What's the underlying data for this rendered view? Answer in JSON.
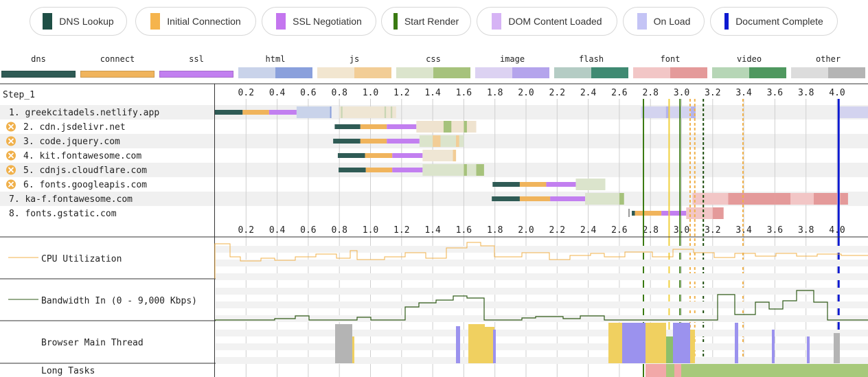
{
  "legend": [
    {
      "label": "DNS Lookup",
      "color": "#1f4f46"
    },
    {
      "label": "Initial Connection",
      "color": "#f5b44d"
    },
    {
      "label": "SSL Negotiation",
      "color": "#c476ef"
    },
    {
      "label": "Start Render",
      "color": "#3a7a12"
    },
    {
      "label": "DOM Content Loaded",
      "color": "#d6b3f5"
    },
    {
      "label": "On Load",
      "color": "#c4c4f5"
    },
    {
      "label": "Document Complete",
      "color": "#0d1ad1"
    }
  ],
  "types": [
    {
      "label": "dns",
      "light": "#2f5b55",
      "dark": "#2f5b55"
    },
    {
      "label": "connect",
      "light": "#f0b45c",
      "dark": "#f0b45c"
    },
    {
      "label": "ssl",
      "light": "#c27ff0",
      "dark": "#c27ff0"
    },
    {
      "label": "html",
      "light": "#c9d3ea",
      "dark": "#8aa0dc"
    },
    {
      "label": "js",
      "light": "#f2e6d0",
      "dark": "#f2cd96"
    },
    {
      "label": "css",
      "light": "#dbe4cc",
      "dark": "#a6c27c"
    },
    {
      "label": "image",
      "light": "#dcd2f2",
      "dark": "#b4a4ec"
    },
    {
      "label": "flash",
      "light": "#b4ccc4",
      "dark": "#3f8a72"
    },
    {
      "label": "font",
      "light": "#f2c6c6",
      "dark": "#e49a9a"
    },
    {
      "label": "video",
      "light": "#b6d6b6",
      "dark": "#4f985f"
    },
    {
      "label": "other",
      "light": "#dcdcdc",
      "dark": "#b4b4b4"
    }
  ],
  "step_label": "Step_1",
  "ticks": [
    "0.2",
    "0.4",
    "0.6",
    "0.8",
    "1.0",
    "1.2",
    "1.4",
    "1.6",
    "1.8",
    "2.0",
    "2.2",
    "2.4",
    "2.6",
    "2.8",
    "3.0",
    "3.2",
    "3.4",
    "3.6",
    "3.8",
    "4.0"
  ],
  "requests": [
    {
      "label": "1. greekcitadels.netlify.app",
      "warn": false
    },
    {
      "label": "2. cdn.jsdelivr.net",
      "warn": true
    },
    {
      "label": "3. code.jquery.com",
      "warn": true
    },
    {
      "label": "4. kit.fontawesome.com",
      "warn": true
    },
    {
      "label": "5. cdnjs.cloudflare.com",
      "warn": true
    },
    {
      "label": "6. fonts.googleapis.com",
      "warn": true
    },
    {
      "label": "7. ka-f.fontawesome.com",
      "warn": false
    },
    {
      "label": "8. fonts.gstatic.com",
      "warn": false
    }
  ],
  "panels": {
    "cpu": "CPU Utilization",
    "bandwidth": "Bandwidth In (0 - 9,000 Kbps)",
    "main_thread": "Browser Main Thread",
    "long_tasks": "Long Tasks"
  }
}
